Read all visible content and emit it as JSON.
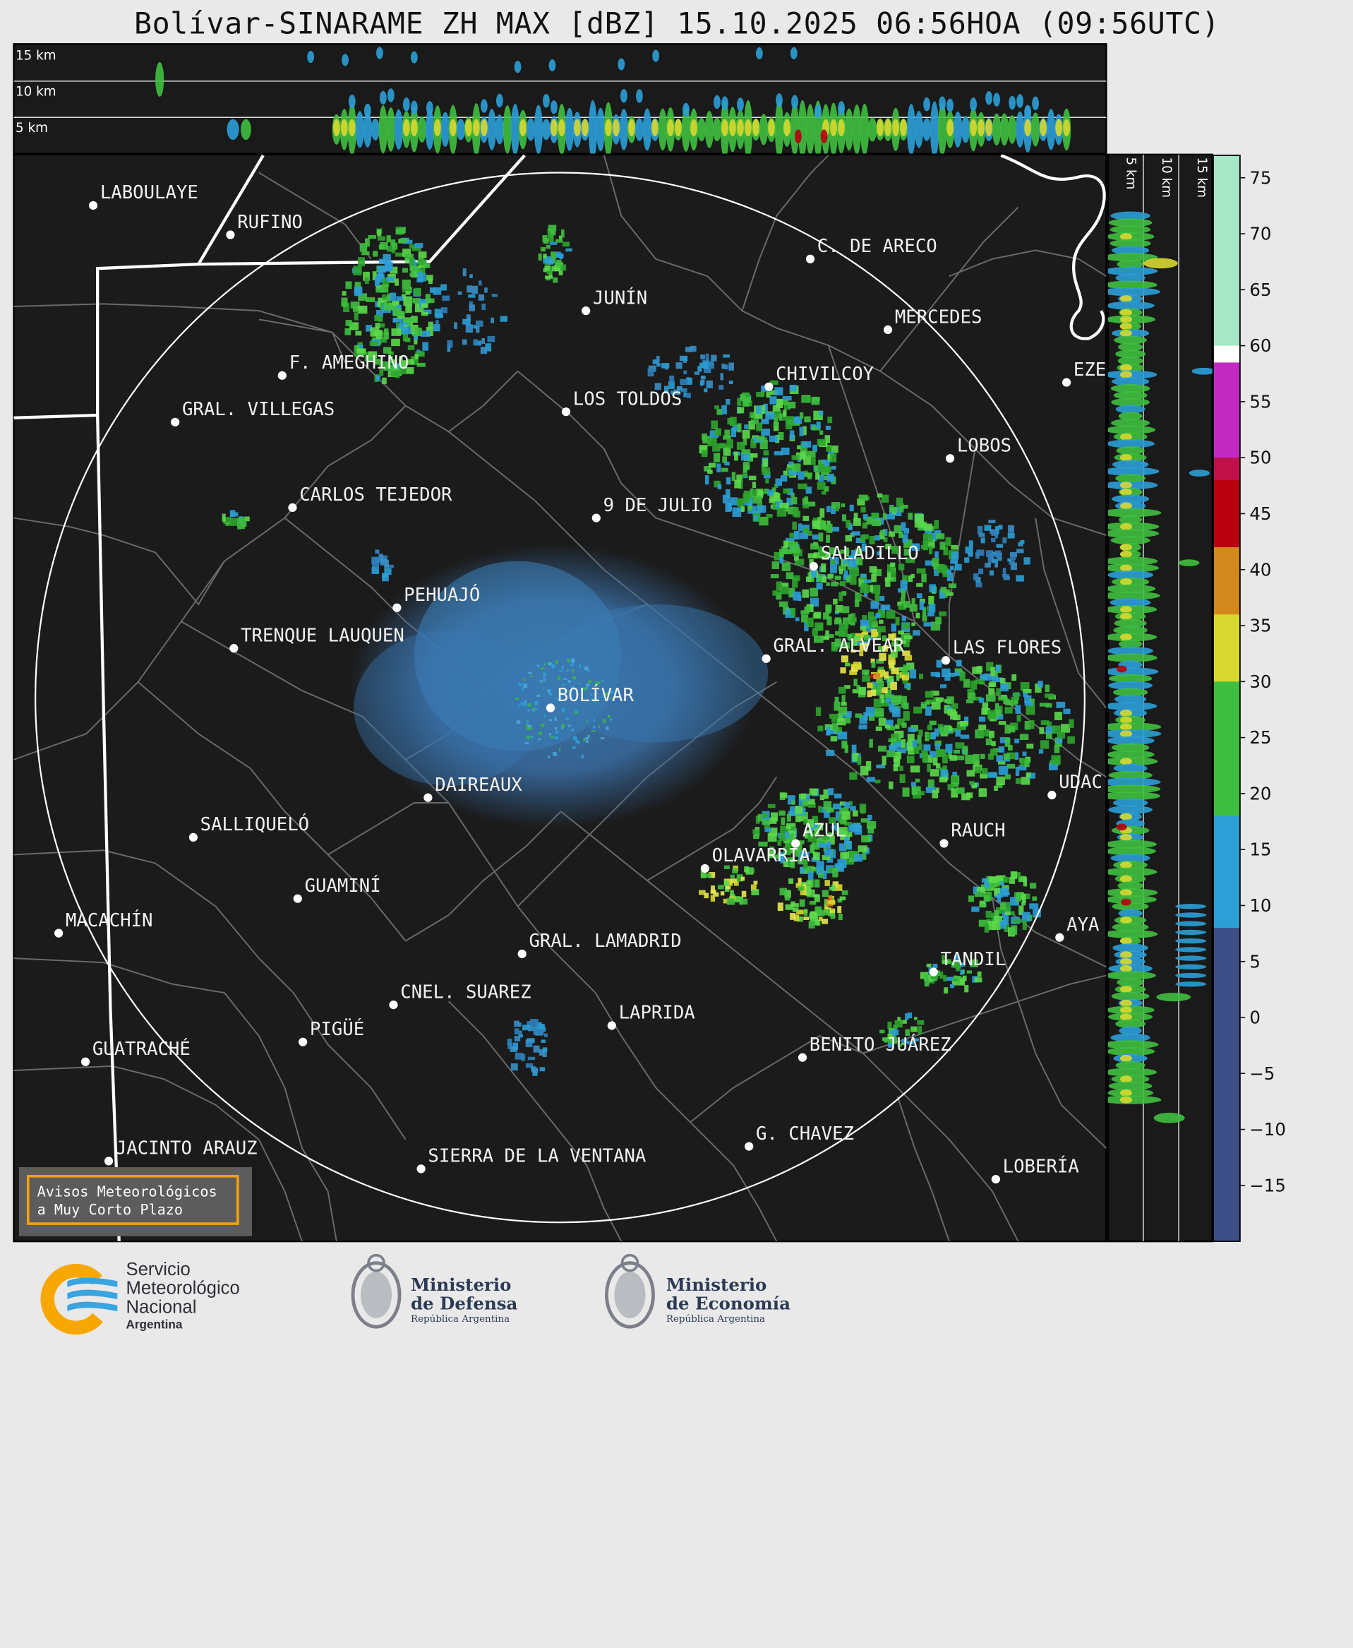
{
  "title": "Bolívar-SINARAME ZH MAX [dBZ] 15.10.2025 06:56HOA (09:56UTC)",
  "top_profile": {
    "height_labels": [
      "15 km",
      "10 km",
      "5 km"
    ]
  },
  "side_profile": {
    "height_labels": [
      "5 km",
      "10 km",
      "15 km"
    ]
  },
  "colorbar": {
    "unit": "dBZ",
    "ticks": [
      "75",
      "70",
      "65",
      "60",
      "55",
      "50",
      "45",
      "40",
      "35",
      "30",
      "25",
      "20",
      "15",
      "10",
      "5",
      "0",
      "−5",
      "−10",
      "−15"
    ],
    "levels": [
      {
        "min": 60,
        "max": 77,
        "color": "#a8e6c8"
      },
      {
        "min": 58.5,
        "max": 60,
        "color": "#ffffff"
      },
      {
        "min": 50,
        "max": 58.5,
        "color": "#c02ac0"
      },
      {
        "min": 48,
        "max": 50,
        "color": "#c0104a"
      },
      {
        "min": 42,
        "max": 48,
        "color": "#b80010"
      },
      {
        "min": 36,
        "max": 42,
        "color": "#d2881c"
      },
      {
        "min": 30,
        "max": 36,
        "color": "#d8d830"
      },
      {
        "min": 18,
        "max": 30,
        "color": "#3fbf3f"
      },
      {
        "min": 8,
        "max": 18,
        "color": "#2b9fd6"
      },
      {
        "min": -20,
        "max": 8,
        "color": "#3b4f86"
      }
    ]
  },
  "cities": [
    {
      "name": "LABOULAYE"
    },
    {
      "name": "RUFINO"
    },
    {
      "name": "C. DE ARECO"
    },
    {
      "name": "JUNÍN"
    },
    {
      "name": "MERCEDES"
    },
    {
      "name": "F. AMEGHINO"
    },
    {
      "name": "CHIVILCOY"
    },
    {
      "name": "EZE"
    },
    {
      "name": "GRAL. VILLEGAS"
    },
    {
      "name": "LOS TOLDOS"
    },
    {
      "name": "LOBOS"
    },
    {
      "name": "CARLOS TEJEDOR"
    },
    {
      "name": "9 DE JULIO"
    },
    {
      "name": "SALADILLO"
    },
    {
      "name": "PEHUAJÓ"
    },
    {
      "name": "TRENQUE LAUQUEN"
    },
    {
      "name": "GRAL. ALVEAR"
    },
    {
      "name": "LAS FLORES"
    },
    {
      "name": "BOLÍVAR"
    },
    {
      "name": "DAIREAUX"
    },
    {
      "name": "UDAC"
    },
    {
      "name": "SALLIQUELÓ"
    },
    {
      "name": "AZUL"
    },
    {
      "name": "RAUCH"
    },
    {
      "name": "OLAVARRÍA"
    },
    {
      "name": "GUAMINÍ"
    },
    {
      "name": "MACACHÍN"
    },
    {
      "name": "AYA"
    },
    {
      "name": "GRAL. LAMADRID"
    },
    {
      "name": "TANDIL"
    },
    {
      "name": "CNEL. SUAREZ"
    },
    {
      "name": "LAPRIDA"
    },
    {
      "name": "PIGÜÉ"
    },
    {
      "name": "BENITO JUÁREZ"
    },
    {
      "name": "GUATRACHÉ"
    },
    {
      "name": "G. CHAVEZ"
    },
    {
      "name": "JACINTO ARAUZ"
    },
    {
      "name": "SIERRA DE LA VENTANA"
    },
    {
      "name": "LOBERÍA"
    }
  ],
  "notice": {
    "line1": "Avisos Meteorológicos",
    "line2": "a Muy Corto Plazo"
  },
  "logos": {
    "smn": {
      "line1": "Servicio",
      "line2": "Meteorológico",
      "line3": "Nacional",
      "line4": "Argentina"
    },
    "defensa": {
      "line1": "Ministerio",
      "line2": "de Defensa",
      "line3": "República Argentina"
    },
    "economia": {
      "line1": "Ministerio",
      "line2": "de Economía",
      "line3": "República Argentina"
    }
  }
}
